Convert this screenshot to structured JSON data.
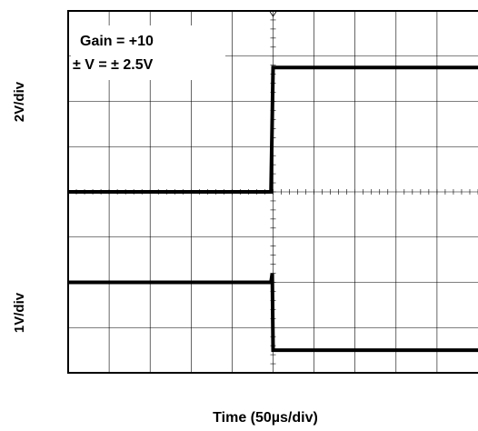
{
  "chart_data": {
    "type": "line",
    "title": "",
    "xlabel": "Time (50µs/div)",
    "annotations": [
      "Gain = +10",
      "± V = ± 2.5V"
    ],
    "grid": true,
    "x_divisions": 10,
    "y_divisions": 8,
    "series": [
      {
        "scale_label": "2V/div",
        "color": "#000000",
        "points": [
          [
            0,
            4.0
          ],
          [
            4.95,
            4.0
          ],
          [
            5.0,
            6.75
          ],
          [
            10,
            6.75
          ]
        ]
      },
      {
        "scale_label": "1V/div",
        "color": "#000000",
        "points": [
          [
            0,
            2.0
          ],
          [
            4.95,
            2.0
          ],
          [
            4.98,
            2.2
          ],
          [
            5.0,
            0.5
          ],
          [
            10,
            0.5
          ]
        ]
      }
    ]
  }
}
